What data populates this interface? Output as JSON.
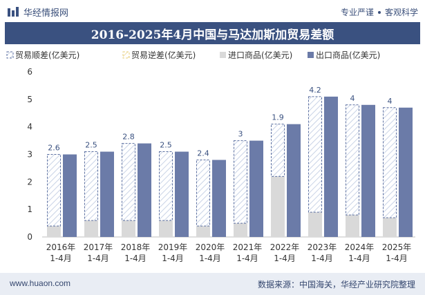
{
  "header": {
    "logo_icon": "huajing-logo-icon",
    "brand": "华经情报网",
    "slogan_left": "专业严谨",
    "slogan_right": "客观科学"
  },
  "colors": {
    "title_bg": "#3a5180",
    "export": "#6b7ba8",
    "import": "#d9d9d9",
    "surplus_stroke": "#5b6fa0",
    "surplus_hatch": "#c9d3e6",
    "deficit": "#f5e7b3",
    "label": "#3a5180"
  },
  "chart_data": {
    "type": "bar",
    "title": "2016-2025年4月中国与马达加斯加贸易差额",
    "categories": [
      [
        "2016年",
        "1-4月"
      ],
      [
        "2017年",
        "1-4月"
      ],
      [
        "2018年",
        "1-4月"
      ],
      [
        "2019年",
        "1-4月"
      ],
      [
        "2020年",
        "1-4月"
      ],
      [
        "2021年",
        "1-4月"
      ],
      [
        "2022年",
        "1-4月"
      ],
      [
        "2023年",
        "1-4月"
      ],
      [
        "2024年",
        "1-4月"
      ],
      [
        "2025年",
        "1-4月"
      ]
    ],
    "ylim": [
      0,
      6
    ],
    "yticks": [
      "0",
      "1",
      "2",
      "3",
      "4",
      "5",
      "6"
    ],
    "legend": [
      "贸易顺差(亿美元)",
      "贸易逆差(亿美元)",
      "进口商品(亿美元)",
      "出口商品(亿美元)"
    ],
    "legend_position": "top-left",
    "series": [
      {
        "name": "贸易顺差(亿美元)",
        "values": [
          2.6,
          2.5,
          2.8,
          2.5,
          2.4,
          3,
          1.9,
          4.2,
          4,
          4
        ],
        "labels": [
          "2.6",
          "2.5",
          "2.8",
          "2.5",
          "2.4",
          "3",
          "1.9",
          "4.2",
          "4",
          "4"
        ]
      },
      {
        "name": "贸易逆差(亿美元)",
        "values": [
          0,
          0,
          0,
          0,
          0,
          0,
          0,
          0,
          0,
          0
        ]
      },
      {
        "name": "进口商品(亿美元)",
        "values": [
          0.4,
          0.6,
          0.6,
          0.6,
          0.4,
          0.5,
          2.2,
          0.9,
          0.8,
          0.7
        ]
      },
      {
        "name": "出口商品(亿美元)",
        "values": [
          3.0,
          3.1,
          3.4,
          3.1,
          2.8,
          3.5,
          4.1,
          5.1,
          4.8,
          4.7
        ]
      }
    ]
  },
  "footer": {
    "website": "www.huaon.com",
    "source": "数据来源：中国海关，华经产业研究院整理"
  }
}
